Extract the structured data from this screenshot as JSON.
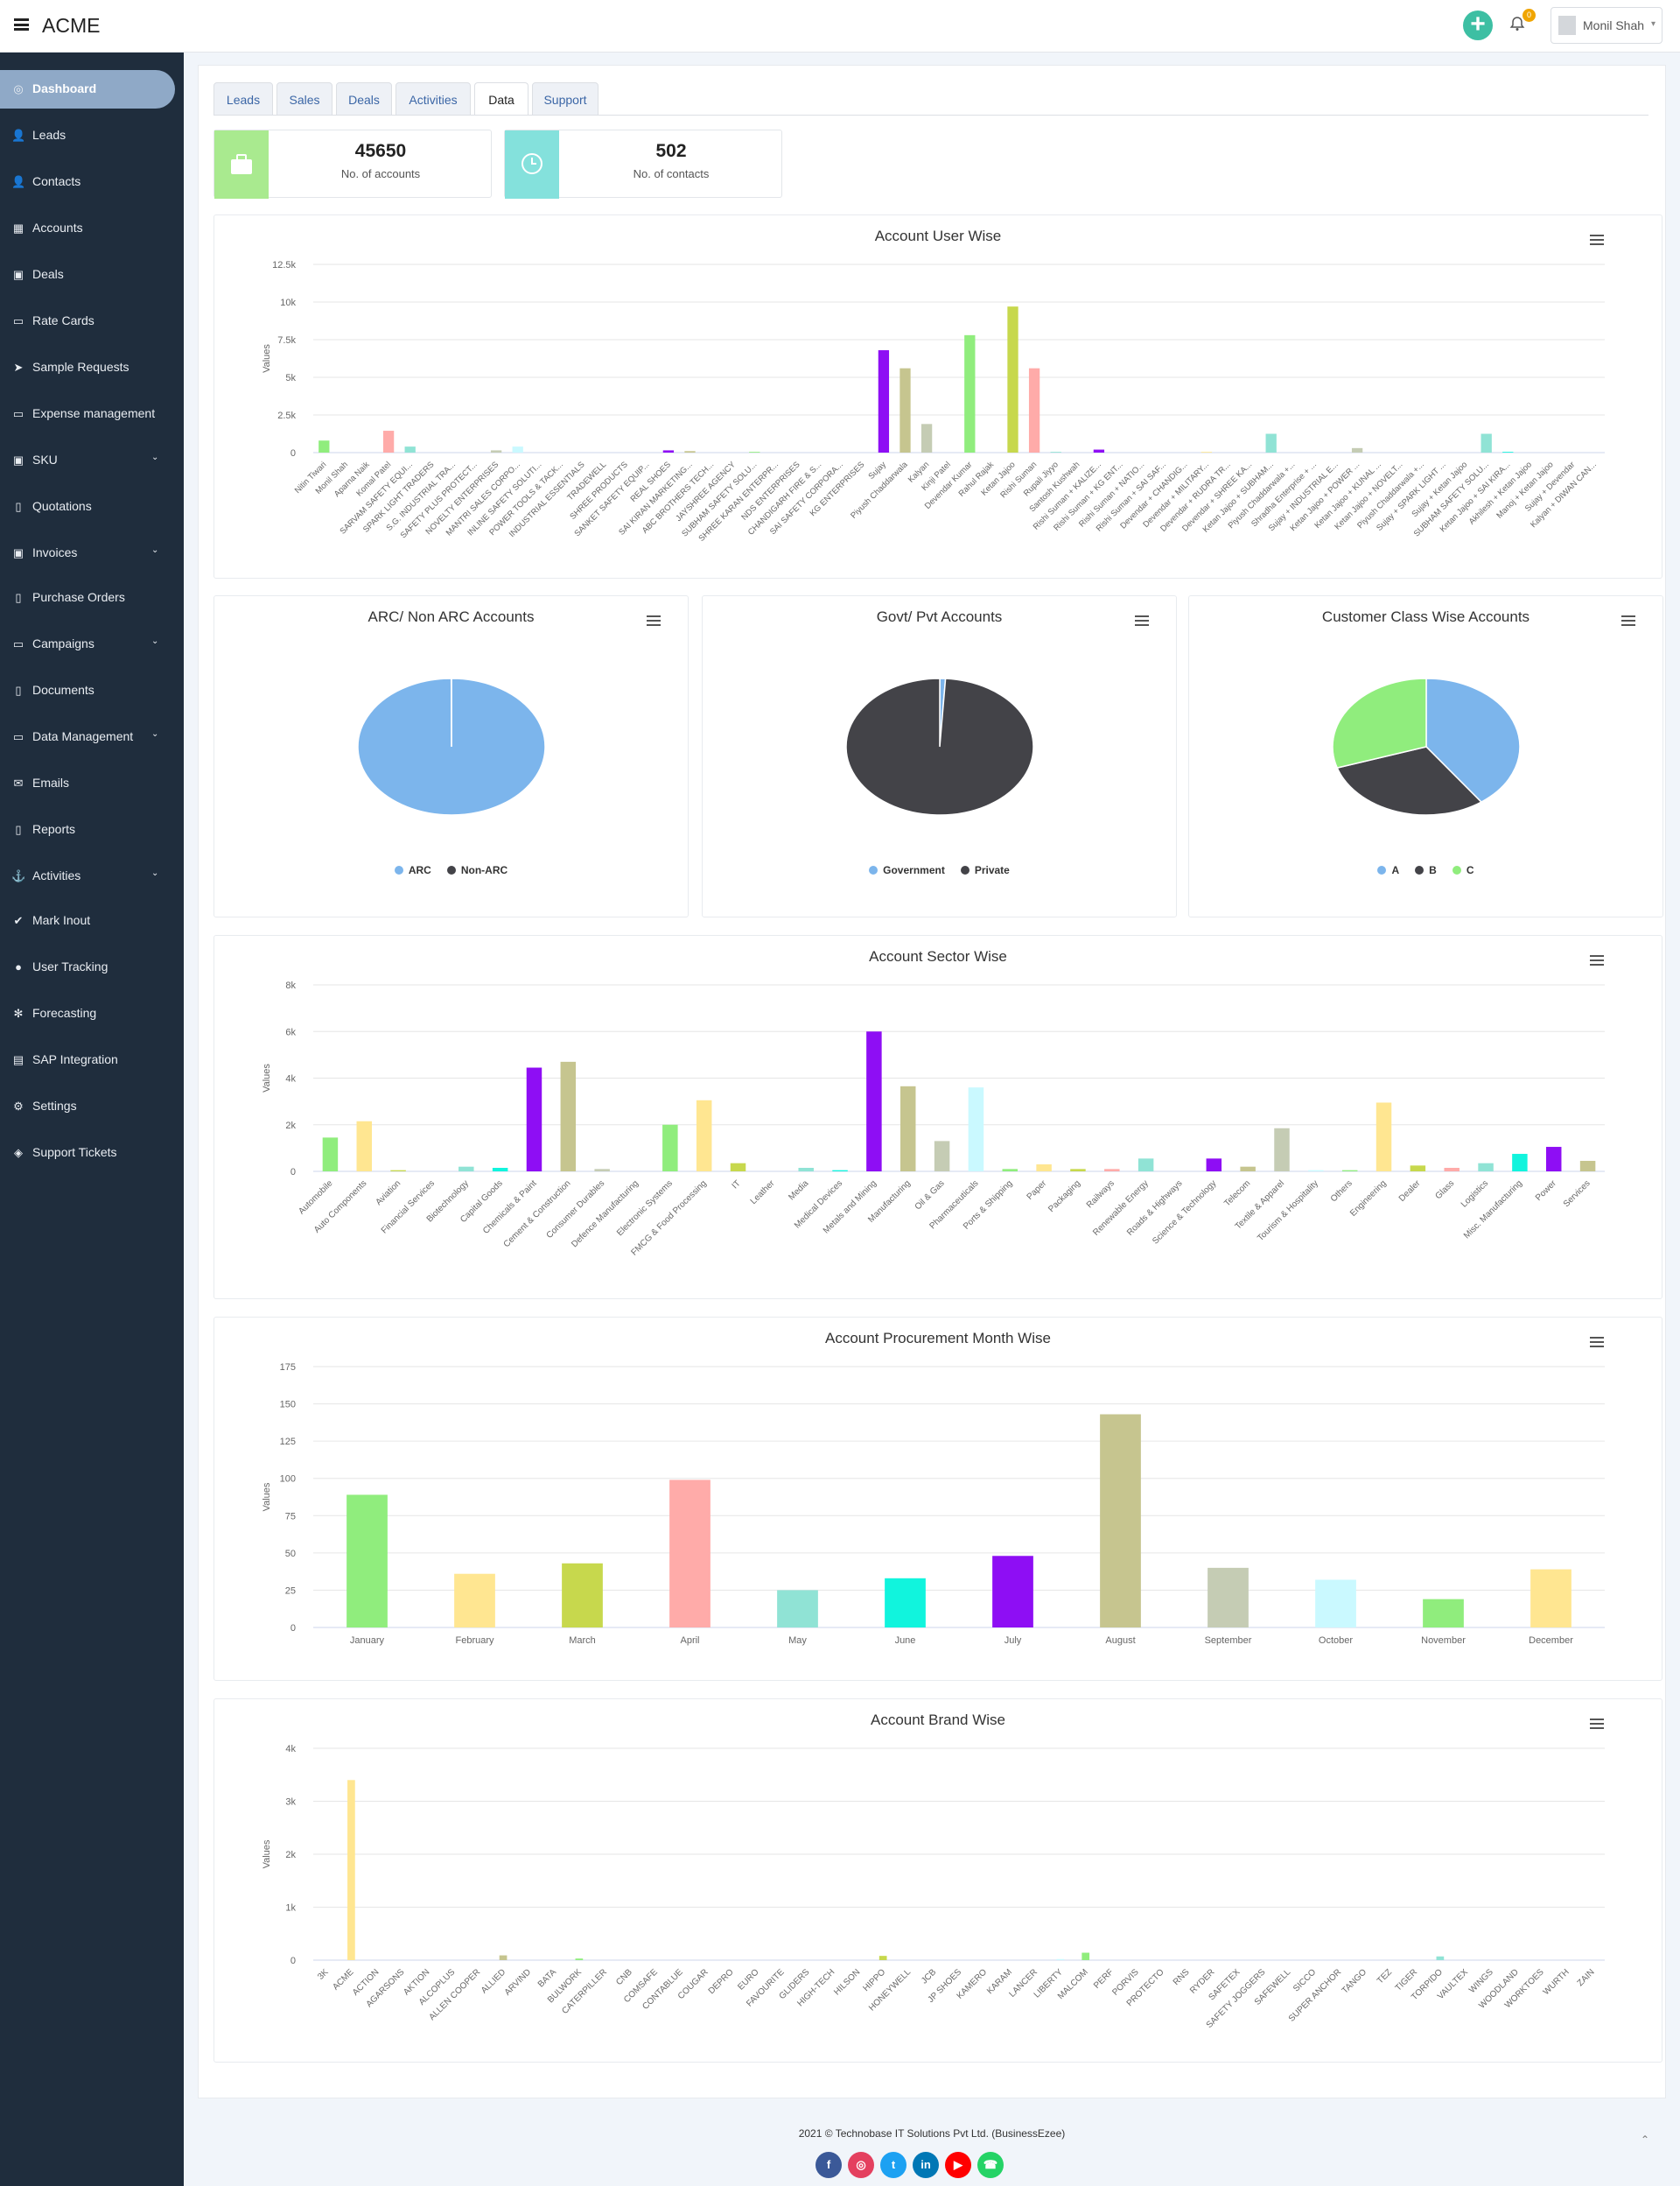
{
  "app": {
    "brand": "ACME"
  },
  "header": {
    "notification_count": "0",
    "user_name": "Monil Shah"
  },
  "sidebar": {
    "items": [
      {
        "label": "Dashboard",
        "icon": "dashboard-icon",
        "glyph": "◎",
        "active": true,
        "caret": false
      },
      {
        "label": "Leads",
        "icon": "user-icon",
        "glyph": "👤",
        "caret": false
      },
      {
        "label": "Contacts",
        "icon": "user-icon",
        "glyph": "👤",
        "caret": false
      },
      {
        "label": "Accounts",
        "icon": "grid-icon",
        "glyph": "▦",
        "caret": false
      },
      {
        "label": "Deals",
        "icon": "briefcase-icon",
        "glyph": "▣",
        "caret": false
      },
      {
        "label": "Rate Cards",
        "icon": "money-icon",
        "glyph": "▭",
        "caret": false
      },
      {
        "label": "Sample Requests",
        "icon": "paper-plane-icon",
        "glyph": "➤",
        "caret": false
      },
      {
        "label": "Expense management",
        "icon": "money-icon",
        "glyph": "▭",
        "caret": false
      },
      {
        "label": "SKU",
        "icon": "briefcase-icon",
        "glyph": "▣",
        "caret": true
      },
      {
        "label": "Quotations",
        "icon": "file-icon",
        "glyph": "▯",
        "caret": false
      },
      {
        "label": "Invoices",
        "icon": "briefcase-icon",
        "glyph": "▣",
        "caret": true
      },
      {
        "label": "Purchase Orders",
        "icon": "file-icon",
        "glyph": "▯",
        "caret": false
      },
      {
        "label": "Campaigns",
        "icon": "credit-card-icon",
        "glyph": "▭",
        "caret": true
      },
      {
        "label": "Documents",
        "icon": "file-icon",
        "glyph": "▯",
        "caret": false
      },
      {
        "label": "Data Management",
        "icon": "credit-card-icon",
        "glyph": "▭",
        "caret": true
      },
      {
        "label": "Emails",
        "icon": "envelope-icon",
        "glyph": "✉",
        "caret": false
      },
      {
        "label": "Reports",
        "icon": "file-icon",
        "glyph": "▯",
        "caret": false
      },
      {
        "label": "Activities",
        "icon": "anchor-icon",
        "glyph": "⚓",
        "caret": true
      },
      {
        "label": "Mark Inout",
        "icon": "check-icon",
        "glyph": "✔",
        "caret": false
      },
      {
        "label": "User Tracking",
        "icon": "map-marker-icon",
        "glyph": "●",
        "caret": false
      },
      {
        "label": "Forecasting",
        "icon": "snowflake-icon",
        "glyph": "✻",
        "caret": false
      },
      {
        "label": "SAP Integration",
        "icon": "database-icon",
        "glyph": "▤",
        "caret": false
      },
      {
        "label": "Settings",
        "icon": "gear-icon",
        "glyph": "⚙",
        "caret": false
      },
      {
        "label": "Support Tickets",
        "icon": "tag-icon",
        "glyph": "◈",
        "caret": false
      }
    ]
  },
  "tabs": [
    {
      "label": "Leads",
      "active": false
    },
    {
      "label": "Sales",
      "active": false
    },
    {
      "label": "Deals",
      "active": false
    },
    {
      "label": "Activities",
      "active": false
    },
    {
      "label": "Data",
      "active": true
    },
    {
      "label": "Support",
      "active": false
    }
  ],
  "stats": [
    {
      "value": "45650",
      "caption": "No. of accounts",
      "color": "#a9ea8f",
      "icon": "briefcase-icon"
    },
    {
      "value": "502",
      "caption": "No. of contacts",
      "color": "#84e1dc",
      "icon": "clock-icon"
    }
  ],
  "footer": {
    "copyright": "2021 © Technobase IT Solutions Pvt Ltd. (BusinessEzee)",
    "social": [
      {
        "name": "facebook-icon",
        "glyph": "f",
        "color": "#3b5998"
      },
      {
        "name": "instagram-icon",
        "glyph": "◎",
        "color": "#e4405f"
      },
      {
        "name": "twitter-icon",
        "glyph": "t",
        "color": "#1da1f2"
      },
      {
        "name": "linkedin-icon",
        "glyph": "in",
        "color": "#0077b5"
      },
      {
        "name": "youtube-icon",
        "glyph": "▶",
        "color": "#ff0000"
      },
      {
        "name": "whatsapp-icon",
        "glyph": "☎",
        "color": "#25d366"
      }
    ]
  },
  "palette": [
    "#90ed7d",
    "#ffe691",
    "#c7d84d",
    "#ffaba9",
    "#90e3d5",
    "#11f4dd",
    "#8e0ef4",
    "#c6c58f",
    "#c5ccb4",
    "#caf9ff"
  ],
  "chart_data": [
    {
      "type": "bar",
      "title": "Account User Wise",
      "ylabel": "Values",
      "ylim": [
        0,
        12500
      ],
      "yticks": [
        "0",
        "2.5k",
        "5k",
        "7.5k",
        "10k",
        "12.5k"
      ],
      "categories": [
        "Nitin Tiwari",
        "Monil Shah",
        "Aparna Naik",
        "Komal Patel",
        "SARVAM SAFETY EQUI...",
        "SPARK LIGHT TRADERS",
        "S.G. INDUSTRIAL TRA...",
        "SAFETY PLUS PROTECT...",
        "NOVELTY ENTERPRISES",
        "MANTRI SALES CORPO...",
        "INLINE SAFETY SOLUTI...",
        "POWER TOOLS & TACK...",
        "INDUSTRIAL ESSENTIALS",
        "TRADEWELL",
        "SHREE PRODUCTS",
        "SANKET SAFETY EQUIP...",
        "REAL SHOES",
        "SAI KIRAN MARKETING...",
        "ABC BROTHERS TECH...",
        "JAYSHREE AGENCY",
        "SUBHAM SAFETY SOLU...",
        "SHREE KARAN ENTERPR...",
        "NDS ENTERPRISES",
        "CHANDIGARH FIRE & S...",
        "SAI SAFETY CORPORA...",
        "KG ENTERPRISES",
        "Sujay",
        "Piyush Chaddarwala",
        "Kalyan",
        "Kinji Patel",
        "Devendar Kumar",
        "Rahul Rajak",
        "Ketan Jajoo",
        "Rishi Suman",
        "Rupali Jiyyo",
        "Santosh Kushwah",
        "Rishi Suman + KALIZE...",
        "Rishi Suman + KG ENT...",
        "Rishi Suman + NATIO...",
        "Rishi Suman + SAI SAF...",
        "Devendar + CHANDIG...",
        "Devendar + MILITARY...",
        "Devendar + RUDRA TR...",
        "Devendar + SHREE KA...",
        "Ketan Jajoo + SUBHAM...",
        "Piyush Chaddarwala +...",
        "Shradha Enterprise + ...",
        "Sujay + INDUSTRIAL E...",
        "Ketan Jajoo + POWER ...",
        "Ketan Jajoo + KUNAL ...",
        "Ketan Jajoo + NOVELT...",
        "Piyush Chaddarwala +...",
        "Sujay + SPARK LIGHT ...",
        "Sujay + Ketan Jajoo",
        "SUBHAM SAFETY SOLU...",
        "Ketan Jajoo + SAI KIRA...",
        "Akhilesh + Ketan Jajoo",
        "Manoj + Ketan Jajoo",
        "Sujay + Devendar",
        "Kalyan + DIWAN CAN..."
      ],
      "values": [
        800,
        0,
        0,
        1450,
        400,
        0,
        0,
        0,
        150,
        400,
        0,
        0,
        0,
        0,
        0,
        0,
        150,
        100,
        0,
        0,
        50,
        0,
        0,
        0,
        0,
        0,
        6800,
        5600,
        1900,
        0,
        7800,
        0,
        9700,
        5600,
        50,
        0,
        200,
        0,
        0,
        0,
        0,
        50,
        0,
        0,
        1250,
        0,
        0,
        0,
        300,
        0,
        0,
        0,
        0,
        0,
        1250,
        50,
        0,
        0,
        0,
        0
      ]
    },
    {
      "type": "pie",
      "title": "ARC/ Non ARC Accounts",
      "categories": [
        "ARC",
        "Non-ARC"
      ],
      "values": [
        45630,
        20
      ],
      "colors": [
        "#7cb5ec",
        "#434348"
      ]
    },
    {
      "type": "pie",
      "title": "Govt/ Pvt Accounts",
      "categories": [
        "Government",
        "Private"
      ],
      "values": [
        450,
        45200
      ],
      "colors": [
        "#7cb5ec",
        "#434348"
      ]
    },
    {
      "type": "pie",
      "title": "Customer Class Wise Accounts",
      "categories": [
        "A",
        "B",
        "C"
      ],
      "values": [
        40,
        30,
        30
      ],
      "colors": [
        "#7cb5ec",
        "#434348",
        "#90ed7d"
      ]
    },
    {
      "type": "bar",
      "title": "Account Sector Wise",
      "ylabel": "Values",
      "ylim": [
        0,
        8000
      ],
      "yticks": [
        "0",
        "2k",
        "4k",
        "6k",
        "8k"
      ],
      "categories": [
        "Automobile",
        "Auto Components",
        "Aviation",
        "Financial Services",
        "Biotechnology",
        "Capital Goods",
        "Chemicals & Paint",
        "Cement & Construction",
        "Consumer Durables",
        "Defence Manufacturing",
        "Electronic Systems",
        "FMCG & Food Processing",
        "IT",
        "Leather",
        "Media",
        "Medical Devices",
        "Metals and Mining",
        "Manufacturing",
        "Oil & Gas",
        "Pharmaceuticals",
        "Ports & Shipping",
        "Paper",
        "Packaging",
        "Railways",
        "Renewable Energy",
        "Roads & Highways",
        "Science & Technology",
        "Telecom",
        "Textile & Apparel",
        "Tourism & Hospitality",
        "Others",
        "Engineering",
        "Dealer",
        "Glass",
        "Logistics",
        "Misc. Manufacturing",
        "Power",
        "Services"
      ],
      "values": [
        1450,
        2150,
        50,
        0,
        200,
        150,
        4450,
        4700,
        100,
        0,
        2000,
        3050,
        350,
        0,
        150,
        50,
        6000,
        3650,
        1300,
        3600,
        100,
        300,
        100,
        100,
        550,
        0,
        550,
        200,
        1850,
        50,
        50,
        2950,
        250,
        150,
        350,
        750,
        1050,
        450
      ]
    },
    {
      "type": "bar",
      "title": "Account Procurement Month Wise",
      "ylabel": "Values",
      "ylim": [
        0,
        175
      ],
      "yticks": [
        "0",
        "25",
        "50",
        "75",
        "100",
        "125",
        "150",
        "175"
      ],
      "categories": [
        "January",
        "February",
        "March",
        "April",
        "May",
        "June",
        "July",
        "August",
        "September",
        "October",
        "November",
        "December"
      ],
      "values": [
        89,
        36,
        43,
        99,
        25,
        33,
        48,
        143,
        40,
        32,
        19,
        39
      ]
    },
    {
      "type": "bar",
      "title": "Account Brand Wise",
      "ylabel": "Values",
      "ylim": [
        0,
        4000
      ],
      "yticks": [
        "0",
        "1k",
        "2k",
        "3k",
        "4k"
      ],
      "categories": [
        "3K",
        "ACME",
        "ACTION",
        "AGARSONS",
        "AKTION",
        "ALCOPLUS",
        "ALLEN COOPER",
        "ALLIED",
        "ARVIND",
        "BATA",
        "BULWORK",
        "CATERPILLER",
        "CNB",
        "COMSAFE",
        "CONTABLUE",
        "COUGAR",
        "DEPRO",
        "EURO",
        "FAVOURITE",
        "GLIDERS",
        "HIGH-TECH",
        "HILSON",
        "HIPPO",
        "HONEYWELL",
        "JCB",
        "JP SHOES",
        "KAMERO",
        "KARAM",
        "LANCER",
        "LIBERTY",
        "MALCOM",
        "PERF",
        "PORVIS",
        "PROTECTO",
        "RNS",
        "RYDER",
        "SAFETEX",
        "SAFETY JOGGERS",
        "SAFEWELL",
        "SICCO",
        "SUPER ANCHOR",
        "TANGO",
        "TEZ",
        "TIGER",
        "TORPIDO",
        "VAULTEX",
        "WINGS",
        "WOODLAND",
        "WORKTOES",
        "WURTH",
        "ZAIN"
      ],
      "values": [
        0,
        3400,
        0,
        0,
        0,
        0,
        0,
        90,
        0,
        0,
        30,
        0,
        0,
        0,
        0,
        0,
        0,
        0,
        0,
        0,
        0,
        0,
        80,
        0,
        0,
        0,
        0,
        0,
        0,
        20,
        140,
        0,
        0,
        0,
        0,
        0,
        0,
        0,
        0,
        0,
        0,
        0,
        0,
        0,
        70,
        0,
        0,
        0,
        0,
        0,
        0
      ]
    }
  ]
}
